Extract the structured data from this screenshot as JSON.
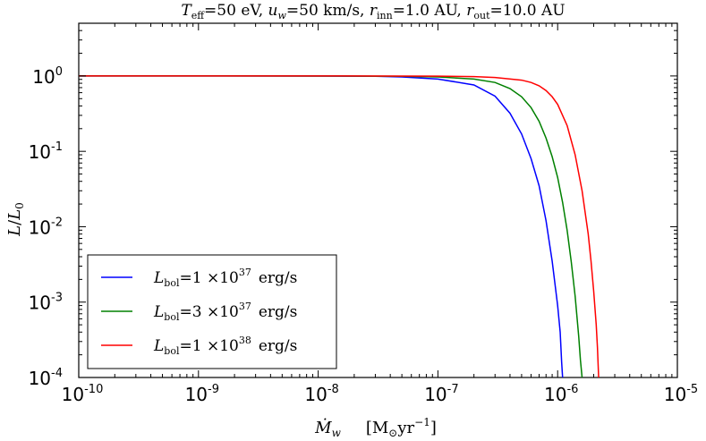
{
  "chart_data": {
    "type": "line",
    "title": {
      "t_label": "T",
      "t_sub": "eff",
      "t_val": "=50 eV,",
      "u_label": "u",
      "u_sub": "w",
      "u_val": "=50 km/s,",
      "rin_label": "r",
      "rin_sub": "inn",
      "rin_val": "=1.0 AU,",
      "rout_label": "r",
      "rout_sub": "out",
      "rout_val": "=10.0 AU"
    },
    "xlabel": {
      "symbol": "Ṁ",
      "sub": "w",
      "unit_open": "[M",
      "unit_sun": "⊙",
      "unit_mid": "yr",
      "unit_exp": "−1",
      "unit_close": "]"
    },
    "ylabel": {
      "num": "L",
      "slash": "/",
      "den": "L",
      "den_sub": "0"
    },
    "x_scale": "log",
    "y_scale": "log",
    "xlim": [
      1e-10,
      1e-05
    ],
    "ylim": [
      0.0001,
      5
    ],
    "x_ticks": [
      {
        "value": 1e-10,
        "base": "10",
        "exp": "-10"
      },
      {
        "value": 1e-09,
        "base": "10",
        "exp": "-9"
      },
      {
        "value": 1e-08,
        "base": "10",
        "exp": "-8"
      },
      {
        "value": 1e-07,
        "base": "10",
        "exp": "-7"
      },
      {
        "value": 1e-06,
        "base": "10",
        "exp": "-6"
      },
      {
        "value": 1e-05,
        "base": "10",
        "exp": "-5"
      }
    ],
    "y_ticks": [
      {
        "value": 0.0001,
        "base": "10",
        "exp": "-4"
      },
      {
        "value": 0.001,
        "base": "10",
        "exp": "-3"
      },
      {
        "value": 0.01,
        "base": "10",
        "exp": "-2"
      },
      {
        "value": 0.1,
        "base": "10",
        "exp": "-1"
      },
      {
        "value": 1,
        "base": "10",
        "exp": "0"
      }
    ],
    "grid": false,
    "legend_position": "lower-left",
    "series": [
      {
        "label": {
          "sym": "L",
          "sub": "bol",
          "eq": "=1 ×10",
          "exp": "37",
          "unit": "erg/s"
        },
        "color": "#0000ff",
        "points": [
          [
            1e-10,
            1.0
          ],
          [
            1e-09,
            1.0
          ],
          [
            1e-08,
            0.998
          ],
          [
            3e-08,
            0.99
          ],
          [
            5e-08,
            0.97
          ],
          [
            1e-07,
            0.91
          ],
          [
            2e-07,
            0.76
          ],
          [
            3e-07,
            0.54
          ],
          [
            4e-07,
            0.32
          ],
          [
            5e-07,
            0.17
          ],
          [
            6e-07,
            0.08
          ],
          [
            7e-07,
            0.035
          ],
          [
            8e-07,
            0.012
          ],
          [
            9e-07,
            0.0035
          ],
          [
            1e-06,
            0.0009
          ],
          [
            1.05e-06,
            0.0004
          ],
          [
            1.08e-06,
            0.00016
          ],
          [
            1.1e-06,
            0.0001
          ]
        ]
      },
      {
        "label": {
          "sym": "L",
          "sub": "bol",
          "eq": "=3 ×10",
          "exp": "37",
          "unit": "erg/s"
        },
        "color": "#008000",
        "points": [
          [
            1e-10,
            1.0
          ],
          [
            1e-09,
            1.0
          ],
          [
            1e-08,
            0.999
          ],
          [
            5e-08,
            0.99
          ],
          [
            1e-07,
            0.97
          ],
          [
            2e-07,
            0.91
          ],
          [
            3e-07,
            0.82
          ],
          [
            4e-07,
            0.68
          ],
          [
            5e-07,
            0.53
          ],
          [
            6e-07,
            0.38
          ],
          [
            7e-07,
            0.25
          ],
          [
            8e-07,
            0.15
          ],
          [
            9e-07,
            0.085
          ],
          [
            1e-06,
            0.045
          ],
          [
            1.1e-06,
            0.021
          ],
          [
            1.2e-06,
            0.009
          ],
          [
            1.3e-06,
            0.0034
          ],
          [
            1.4e-06,
            0.0012
          ],
          [
            1.5e-06,
            0.00035
          ],
          [
            1.55e-06,
            0.00017
          ],
          [
            1.6e-06,
            0.0001
          ]
        ]
      },
      {
        "label": {
          "sym": "L",
          "sub": "bol",
          "eq": "=1 ×10",
          "exp": "38",
          "unit": "erg/s"
        },
        "color": "#ff0000",
        "points": [
          [
            1e-10,
            1.0
          ],
          [
            1e-09,
            1.0
          ],
          [
            1e-08,
            1.0
          ],
          [
            1e-07,
            0.995
          ],
          [
            2e-07,
            0.98
          ],
          [
            3e-07,
            0.955
          ],
          [
            5e-07,
            0.88
          ],
          [
            6e-07,
            0.82
          ],
          [
            7e-07,
            0.74
          ],
          [
            8e-07,
            0.64
          ],
          [
            9e-07,
            0.53
          ],
          [
            1e-06,
            0.42
          ],
          [
            1.2e-06,
            0.22
          ],
          [
            1.4e-06,
            0.09
          ],
          [
            1.6e-06,
            0.03
          ],
          [
            1.8e-06,
            0.008
          ],
          [
            1.9e-06,
            0.0035
          ],
          [
            2e-06,
            0.0014
          ],
          [
            2.1e-06,
            0.0005
          ],
          [
            2.15e-06,
            0.00025
          ],
          [
            2.2e-06,
            0.0001
          ]
        ]
      }
    ]
  }
}
